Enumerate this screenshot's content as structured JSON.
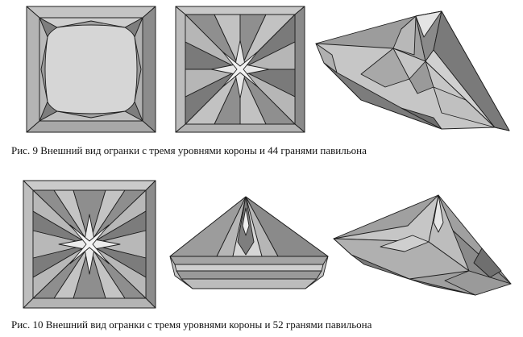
{
  "figures": [
    {
      "caption": "Рис. 9  Внешний вид огранки с тремя уровнями короны и 44 гранями павильона",
      "views": [
        {
          "name": "top view, crown"
        },
        {
          "name": "bottom view, pavilion"
        },
        {
          "name": "perspective view"
        }
      ]
    },
    {
      "caption": "Рис. 10  Внешний вид огранки с тремя уровнями короны и 52 гранями павильона",
      "views": [
        {
          "name": "bottom view, pavilion"
        },
        {
          "name": "side view"
        },
        {
          "name": "perspective view"
        }
      ]
    }
  ],
  "colors": {
    "facet_light": "#d8d8d8",
    "facet_mid": "#bdbdbd",
    "facet_dark": "#8f8f8f",
    "facet_darker": "#6e6e6e",
    "edge": "#1e1e1e"
  }
}
